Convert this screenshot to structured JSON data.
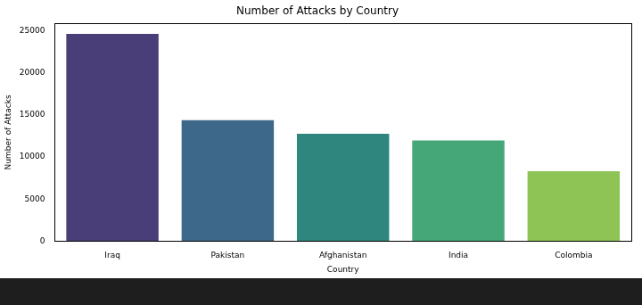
{
  "chart_data": {
    "type": "bar",
    "title": "Number of Attacks by Country",
    "x_label": "Country",
    "y_label": "Number of Attacks",
    "categories": [
      "Iraq",
      "Pakistan",
      "Afghanistan",
      "India",
      "Colombia"
    ],
    "values": [
      24600,
      14350,
      12750,
      11950,
      8300
    ],
    "colors": [
      "#4a3e78",
      "#3e6889",
      "#2f867e",
      "#45a778",
      "#8ec456"
    ],
    "ylim": [
      0,
      25830
    ],
    "yticks": [
      0,
      5000,
      10000,
      15000,
      20000,
      25000
    ],
    "grid": false
  }
}
